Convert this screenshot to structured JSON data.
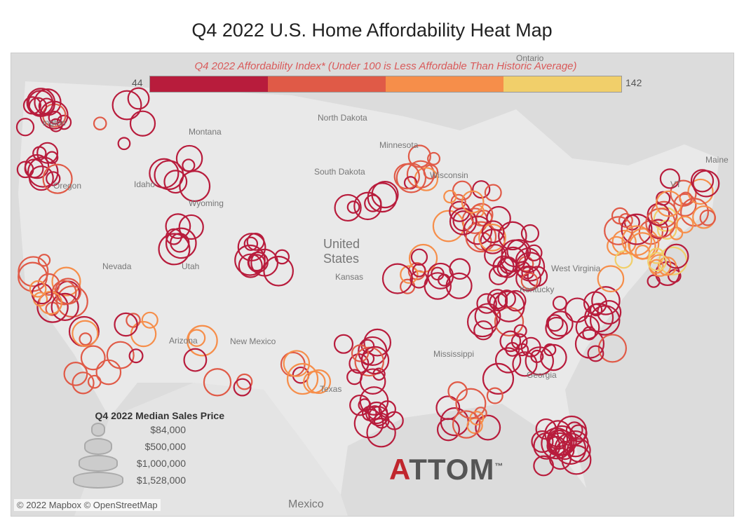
{
  "title": "Q4 2022 U.S. Home Affordability Heat Map",
  "color_legend": {
    "title": "Q4 2022 Affordability Index* (Under 100 is Less Affordable Than Historic Average)",
    "min": "44",
    "max": "142",
    "colors": [
      "#b81c3c",
      "#e05a47",
      "#f68e4a",
      "#f1cf6a"
    ]
  },
  "size_legend": {
    "title": "Q4 2022 Median Sales Price",
    "items": [
      "$84,000",
      "$500,000",
      "$1,000,000",
      "$1,528,000"
    ]
  },
  "map_labels": [
    "Ontario",
    "North Dakota",
    "Minnesota",
    "Montana",
    "ington",
    "Oregon",
    "Idaho",
    "Wyoming",
    "South Dakota",
    "United States",
    "Nevada",
    "Utah",
    "Kansas",
    "Arizona",
    "New Mexico",
    "Texas",
    "Mississippi",
    "Georgia",
    "Kentucky",
    "West Virginia",
    "Wisconsin",
    "Maine",
    "VT",
    "Mexico"
  ],
  "credit": "© 2022 Mapbox © OpenStreetMap",
  "logo": {
    "prefix": "A",
    "text": "TTOM",
    "tm": "™"
  }
}
